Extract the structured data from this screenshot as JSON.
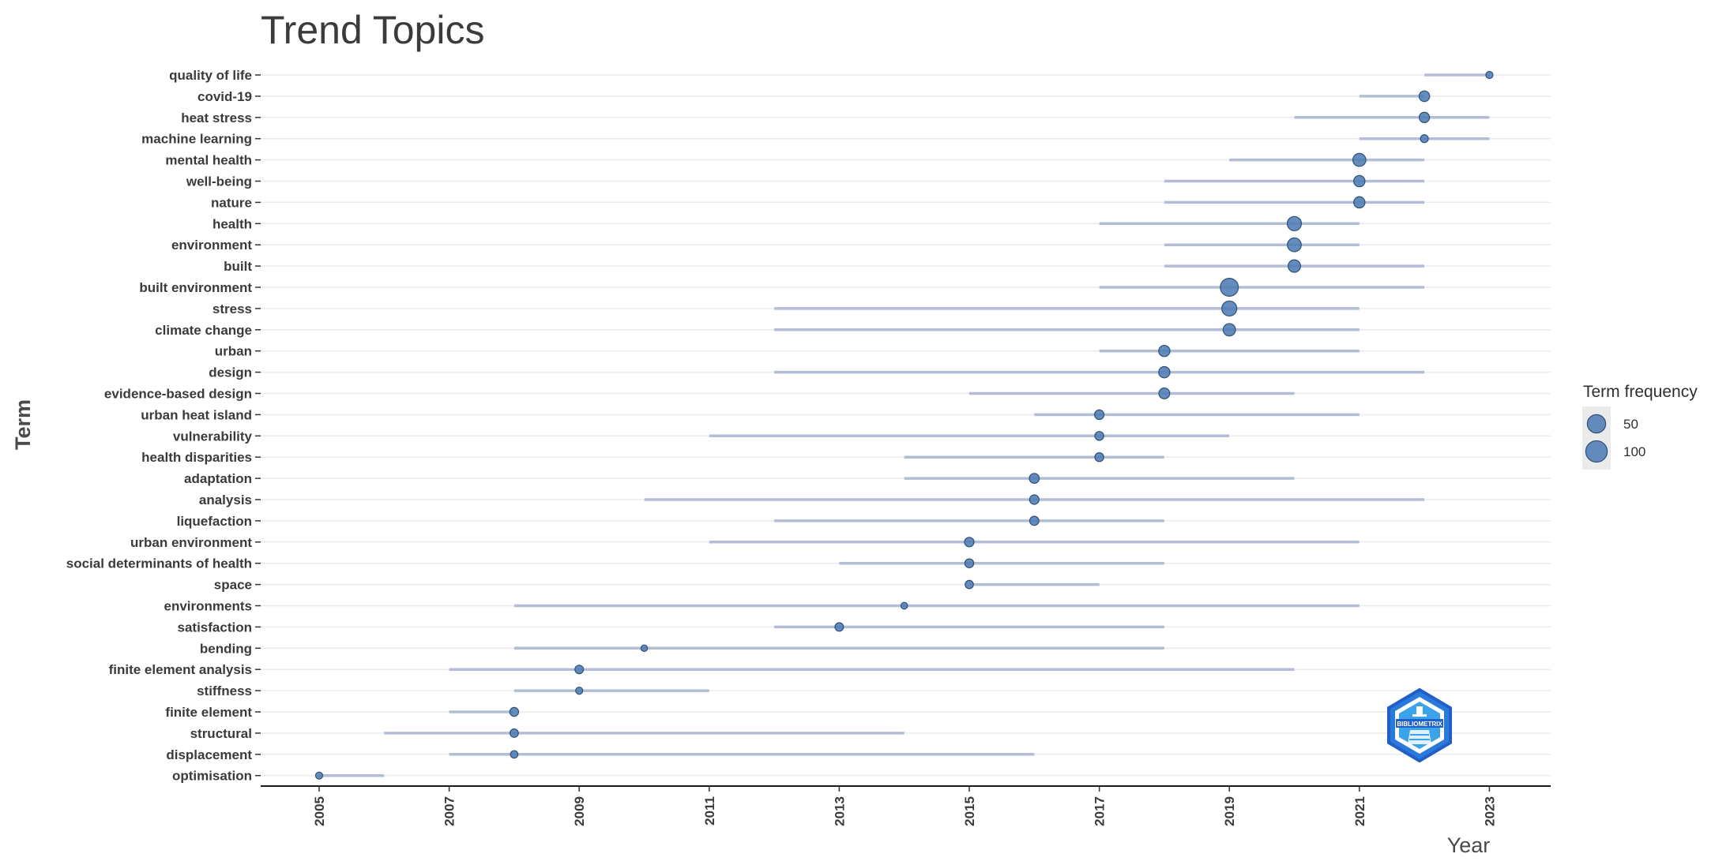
{
  "chart_data": {
    "type": "scatter",
    "title": "Trend Topics",
    "xlabel": "Year",
    "ylabel": "Term",
    "xlim": [
      2004,
      2024
    ],
    "x_ticks": [
      "2005",
      "2007",
      "2009",
      "2011",
      "2013",
      "2015",
      "2017",
      "2019",
      "2021",
      "2023"
    ],
    "grid": "horizontal",
    "legend": {
      "title": "Term frequency",
      "placement": "right",
      "entries": [
        {
          "label": "50",
          "value": 50
        },
        {
          "label": "100",
          "value": 100
        }
      ]
    },
    "colors": {
      "point": "#4f7db5",
      "point_stroke": "#2e4f7a",
      "range_line": "#b3bed6",
      "grid": "#ebebeb"
    },
    "terms": [
      {
        "term": "quality of life",
        "start": 2022,
        "median": 2023,
        "end": 2023,
        "freq": 18
      },
      {
        "term": "covid-19",
        "start": 2021,
        "median": 2022,
        "end": 2022,
        "freq": 40
      },
      {
        "term": "heat stress",
        "start": 2020,
        "median": 2022,
        "end": 2023,
        "freq": 38
      },
      {
        "term": "machine learning",
        "start": 2021,
        "median": 2022,
        "end": 2023,
        "freq": 22
      },
      {
        "term": "mental health",
        "start": 2019,
        "median": 2021,
        "end": 2022,
        "freq": 60
      },
      {
        "term": "well-being",
        "start": 2018,
        "median": 2021,
        "end": 2022,
        "freq": 45
      },
      {
        "term": "nature",
        "start": 2018,
        "median": 2021,
        "end": 2022,
        "freq": 45
      },
      {
        "term": "health",
        "start": 2017,
        "median": 2020,
        "end": 2021,
        "freq": 72
      },
      {
        "term": "environment",
        "start": 2018,
        "median": 2020,
        "end": 2021,
        "freq": 68
      },
      {
        "term": "built",
        "start": 2018,
        "median": 2020,
        "end": 2022,
        "freq": 55
      },
      {
        "term": "built environment",
        "start": 2017,
        "median": 2019,
        "end": 2022,
        "freq": 115
      },
      {
        "term": "stress",
        "start": 2012,
        "median": 2019,
        "end": 2021,
        "freq": 80
      },
      {
        "term": "climate change",
        "start": 2012,
        "median": 2019,
        "end": 2021,
        "freq": 55
      },
      {
        "term": "urban",
        "start": 2017,
        "median": 2018,
        "end": 2021,
        "freq": 45
      },
      {
        "term": "design",
        "start": 2012,
        "median": 2018,
        "end": 2022,
        "freq": 45
      },
      {
        "term": "evidence-based design",
        "start": 2015,
        "median": 2018,
        "end": 2020,
        "freq": 42
      },
      {
        "term": "urban heat island",
        "start": 2016,
        "median": 2017,
        "end": 2021,
        "freq": 32
      },
      {
        "term": "vulnerability",
        "start": 2011,
        "median": 2017,
        "end": 2019,
        "freq": 28
      },
      {
        "term": "health disparities",
        "start": 2014,
        "median": 2017,
        "end": 2018,
        "freq": 28
      },
      {
        "term": "adaptation",
        "start": 2014,
        "median": 2016,
        "end": 2020,
        "freq": 35
      },
      {
        "term": "analysis",
        "start": 2010,
        "median": 2016,
        "end": 2022,
        "freq": 32
      },
      {
        "term": "liquefaction",
        "start": 2012,
        "median": 2016,
        "end": 2018,
        "freq": 30
      },
      {
        "term": "urban environment",
        "start": 2011,
        "median": 2015,
        "end": 2021,
        "freq": 32
      },
      {
        "term": "social determinants of health",
        "start": 2013,
        "median": 2015,
        "end": 2018,
        "freq": 28
      },
      {
        "term": "space",
        "start": 2015,
        "median": 2015,
        "end": 2017,
        "freq": 24
      },
      {
        "term": "environments",
        "start": 2008,
        "median": 2014,
        "end": 2021,
        "freq": 16
      },
      {
        "term": "satisfaction",
        "start": 2012,
        "median": 2013,
        "end": 2018,
        "freq": 26
      },
      {
        "term": "bending",
        "start": 2008,
        "median": 2010,
        "end": 2018,
        "freq": 15
      },
      {
        "term": "finite element analysis",
        "start": 2007,
        "median": 2009,
        "end": 2020,
        "freq": 26
      },
      {
        "term": "stiffness",
        "start": 2008,
        "median": 2009,
        "end": 2011,
        "freq": 18
      },
      {
        "term": "finite element",
        "start": 2007,
        "median": 2008,
        "end": 2008,
        "freq": 28
      },
      {
        "term": "structural",
        "start": 2006,
        "median": 2008,
        "end": 2014,
        "freq": 25
      },
      {
        "term": "displacement",
        "start": 2007,
        "median": 2008,
        "end": 2016,
        "freq": 20
      },
      {
        "term": "optimisation",
        "start": 2005,
        "median": 2005,
        "end": 2006,
        "freq": 18
      }
    ]
  },
  "logo": {
    "name": "bibliometrix-logo-icon",
    "text": "BIBLIOMETRIX",
    "color_dark": "#1f5fc7",
    "color_light": "#3aa3ea"
  }
}
